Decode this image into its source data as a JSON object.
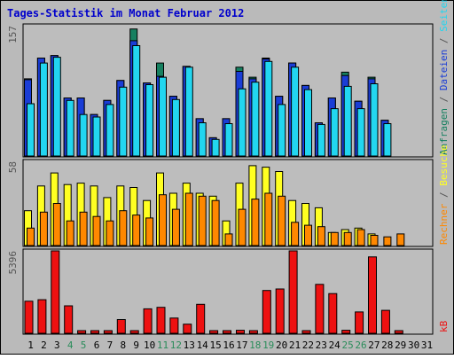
{
  "title": "Tages-Statistik im Monat Februar 2012",
  "colors": {
    "frame_outer": "#000000",
    "frame_bg": "#BABABA",
    "plot_bg": "#BDBDBD",
    "title_text": "#0000CC",
    "ylabel_text": "#555555",
    "anfragen": "#168060",
    "dateien": "#1A3DD6",
    "seiten": "#22D6F0",
    "besuche": "#FFFF22",
    "rechner": "#FF8800",
    "kb": "#EE1111",
    "weekday_label": "#000000",
    "weekend_label": "#2A8C5A"
  },
  "chart_data": [
    {
      "type": "bar",
      "panel": "hits",
      "ymax_label": "157",
      "ylim": [
        0,
        157
      ],
      "x": [
        1,
        2,
        3,
        4,
        5,
        6,
        7,
        8,
        9,
        10,
        11,
        12,
        13,
        14,
        15,
        16,
        17,
        18,
        19,
        20,
        21,
        22,
        23,
        24,
        25,
        26,
        27,
        28,
        29,
        30,
        31
      ],
      "right_legend": [
        {
          "text": "Anfragen",
          "color_key": "anfragen"
        },
        {
          "text": " / ",
          "color_key": "ylabel_text"
        },
        {
          "text": "Dateien",
          "color_key": "dateien"
        },
        {
          "text": " / ",
          "color_key": "ylabel_text"
        },
        {
          "text": "Seiten",
          "color_key": "seiten"
        }
      ],
      "series": [
        {
          "name": "Anfragen",
          "color_key": "anfragen",
          "values": [
            93,
            118,
            121,
            70,
            70,
            50,
            67,
            91,
            153,
            88,
            112,
            72,
            108,
            45,
            22,
            45,
            107,
            95,
            118,
            72,
            112,
            85,
            40,
            70,
            101,
            66,
            95,
            43,
            0,
            0,
            0
          ]
        },
        {
          "name": "Dateien",
          "color_key": "dateien",
          "values": [
            92,
            118,
            121,
            70,
            70,
            50,
            67,
            91,
            139,
            88,
            96,
            72,
            108,
            45,
            22,
            45,
            102,
            93,
            117,
            72,
            112,
            85,
            40,
            70,
            97,
            66,
            93,
            43,
            0,
            0,
            0
          ]
        },
        {
          "name": "Seiten",
          "color_key": "seiten",
          "values": [
            63,
            112,
            119,
            67,
            50,
            47,
            62,
            83,
            133,
            86,
            95,
            68,
            107,
            40,
            20,
            39,
            81,
            89,
            114,
            62,
            107,
            80,
            38,
            57,
            84,
            57,
            87,
            39,
            0,
            0,
            0
          ]
        }
      ]
    },
    {
      "type": "bar",
      "panel": "visits",
      "ymax_label": "58",
      "ylim": [
        0,
        58
      ],
      "x": [
        1,
        2,
        3,
        4,
        5,
        6,
        7,
        8,
        9,
        10,
        11,
        12,
        13,
        14,
        15,
        16,
        17,
        18,
        19,
        20,
        21,
        22,
        23,
        24,
        25,
        26,
        27,
        28,
        29,
        30,
        31
      ],
      "right_legend": [
        {
          "text": "Rechner",
          "color_key": "rechner"
        },
        {
          "text": " / ",
          "color_key": "ylabel_text"
        },
        {
          "text": "Besuche",
          "color_key": "besuche"
        }
      ],
      "series": [
        {
          "name": "Besuche",
          "color_key": "besuche",
          "values": [
            24,
            41,
            50,
            42,
            43,
            41,
            33,
            41,
            40,
            31,
            50,
            36,
            43,
            36,
            34,
            17,
            43,
            55,
            54,
            51,
            31,
            29,
            26,
            9,
            11,
            12,
            8,
            0,
            0,
            0,
            0
          ]
        },
        {
          "name": "Rechner",
          "color_key": "rechner",
          "values": [
            12,
            23,
            29,
            17,
            23,
            20,
            17,
            24,
            21,
            19,
            35,
            25,
            36,
            34,
            31,
            8,
            25,
            32,
            36,
            34,
            16,
            14,
            13,
            9,
            9,
            11,
            7,
            6,
            8,
            0,
            0
          ]
        }
      ]
    },
    {
      "type": "bar",
      "panel": "kb",
      "ymax_label": "5396",
      "ylim": [
        0,
        5396
      ],
      "x": [
        1,
        2,
        3,
        4,
        5,
        6,
        7,
        8,
        9,
        10,
        11,
        12,
        13,
        14,
        15,
        16,
        17,
        18,
        19,
        20,
        21,
        22,
        23,
        24,
        25,
        26,
        27,
        28,
        29,
        30,
        31
      ],
      "right_legend": [
        {
          "text": "kB",
          "color_key": "kb"
        }
      ],
      "series": [
        {
          "name": "kB",
          "color_key": "kb",
          "values": [
            2100,
            2200,
            5396,
            1800,
            100,
            100,
            100,
            900,
            100,
            1600,
            1700,
            1000,
            600,
            1900,
            100,
            100,
            200,
            100,
            2800,
            2900,
            5396,
            100,
            3200,
            2600,
            200,
            1400,
            5000,
            1500,
            120,
            0,
            0
          ]
        }
      ]
    }
  ],
  "x_axis": {
    "labels": [
      {
        "text": "1",
        "weekend": false
      },
      {
        "text": "2",
        "weekend": false
      },
      {
        "text": "3",
        "weekend": false
      },
      {
        "text": "4",
        "weekend": true
      },
      {
        "text": "5",
        "weekend": true
      },
      {
        "text": "6",
        "weekend": false
      },
      {
        "text": "7",
        "weekend": false
      },
      {
        "text": "8",
        "weekend": false
      },
      {
        "text": "9",
        "weekend": false
      },
      {
        "text": "10",
        "weekend": false
      },
      {
        "text": "11",
        "weekend": true
      },
      {
        "text": "12",
        "weekend": true
      },
      {
        "text": "13",
        "weekend": false
      },
      {
        "text": "14",
        "weekend": false
      },
      {
        "text": "15",
        "weekend": false
      },
      {
        "text": "16",
        "weekend": false
      },
      {
        "text": "17",
        "weekend": false
      },
      {
        "text": "18",
        "weekend": true
      },
      {
        "text": "19",
        "weekend": true
      },
      {
        "text": "20",
        "weekend": false
      },
      {
        "text": "21",
        "weekend": false
      },
      {
        "text": "22",
        "weekend": false
      },
      {
        "text": "23",
        "weekend": false
      },
      {
        "text": "24",
        "weekend": false
      },
      {
        "text": "25",
        "weekend": true
      },
      {
        "text": "26",
        "weekend": true
      },
      {
        "text": "27",
        "weekend": false
      },
      {
        "text": "28",
        "weekend": false
      },
      {
        "text": "29",
        "weekend": false
      },
      {
        "text": "30",
        "weekend": false
      },
      {
        "text": "31",
        "weekend": false
      }
    ]
  }
}
